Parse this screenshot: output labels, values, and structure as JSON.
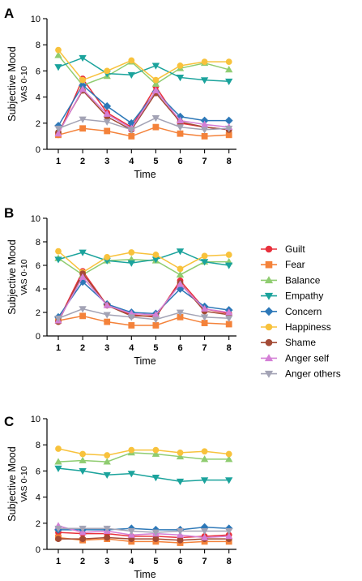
{
  "chart_data": [
    {
      "panel": "A",
      "type": "line",
      "ylabel": "Subjective Mood",
      "ylabel2": "VAS 0-10",
      "xlabel": "Time",
      "ylim": [
        0,
        10
      ],
      "yticks": [
        0,
        2,
        4,
        6,
        8,
        10
      ],
      "x": [
        1,
        2,
        3,
        4,
        5,
        6,
        7,
        8
      ],
      "series": [
        {
          "name": "Guilt",
          "values": [
            1.1,
            5.4,
            2.8,
            1.7,
            4.8,
            2.0,
            1.7,
            1.5
          ]
        },
        {
          "name": "Fear",
          "values": [
            1.1,
            1.6,
            1.4,
            1.0,
            1.7,
            1.2,
            1.0,
            1.1
          ]
        },
        {
          "name": "Balance",
          "values": [
            7.2,
            4.9,
            5.6,
            6.7,
            5.0,
            6.2,
            6.6,
            6.1
          ]
        },
        {
          "name": "Empathy",
          "values": [
            6.3,
            7.0,
            5.8,
            5.7,
            6.4,
            5.5,
            5.3,
            5.2
          ]
        },
        {
          "name": "Concern",
          "values": [
            1.8,
            4.9,
            3.3,
            2.0,
            4.4,
            2.5,
            2.2,
            2.2
          ]
        },
        {
          "name": "Happiness",
          "values": [
            7.6,
            5.3,
            6.0,
            6.8,
            5.3,
            6.4,
            6.7,
            6.7
          ]
        },
        {
          "name": "Shame",
          "values": [
            1.3,
            4.5,
            2.5,
            1.5,
            4.3,
            2.1,
            1.7,
            1.5
          ]
        },
        {
          "name": "Anger self",
          "values": [
            1.2,
            4.6,
            2.7,
            1.6,
            4.5,
            2.2,
            1.9,
            1.7
          ]
        },
        {
          "name": "Anger others",
          "values": [
            1.6,
            2.3,
            2.1,
            1.5,
            2.4,
            1.7,
            1.5,
            1.6
          ]
        }
      ]
    },
    {
      "panel": "B",
      "type": "line",
      "ylabel": "Subjective Mood",
      "ylabel2": "VAS 0-10",
      "xlabel": "Time",
      "ylim": [
        0,
        10
      ],
      "yticks": [
        0,
        2,
        4,
        6,
        8,
        10
      ],
      "x": [
        1,
        2,
        3,
        4,
        5,
        6,
        7,
        8
      ],
      "series": [
        {
          "name": "Guilt",
          "values": [
            1.3,
            5.5,
            2.6,
            1.8,
            1.6,
            4.7,
            2.3,
            1.9
          ]
        },
        {
          "name": "Fear",
          "values": [
            1.3,
            1.7,
            1.2,
            0.9,
            0.9,
            1.6,
            1.1,
            1.0
          ]
        },
        {
          "name": "Balance",
          "values": [
            6.6,
            5.2,
            6.4,
            6.5,
            6.4,
            5.2,
            6.3,
            6.3
          ]
        },
        {
          "name": "Empathy",
          "values": [
            6.5,
            7.1,
            6.4,
            6.2,
            6.5,
            7.2,
            6.3,
            6.0
          ]
        },
        {
          "name": "Concern",
          "values": [
            1.6,
            4.6,
            2.7,
            2.0,
            1.9,
            4.0,
            2.5,
            2.2
          ]
        },
        {
          "name": "Happiness",
          "values": [
            7.2,
            5.4,
            6.7,
            7.1,
            6.9,
            5.7,
            6.8,
            6.9
          ]
        },
        {
          "name": "Shame",
          "values": [
            1.2,
            5.3,
            2.6,
            1.7,
            1.7,
            4.5,
            2.1,
            1.8
          ]
        },
        {
          "name": "Anger self",
          "values": [
            1.3,
            5.0,
            2.6,
            1.9,
            1.8,
            4.4,
            2.3,
            2.0
          ]
        },
        {
          "name": "Anger others",
          "values": [
            1.5,
            2.3,
            1.8,
            1.6,
            1.4,
            2.0,
            1.6,
            1.5
          ]
        }
      ]
    },
    {
      "panel": "C",
      "type": "line",
      "ylabel": "Subjective Mood",
      "ylabel2": "VAS 0-10",
      "xlabel": "Time",
      "ylim": [
        0,
        10
      ],
      "yticks": [
        0,
        2,
        4,
        6,
        8,
        10
      ],
      "x": [
        1,
        2,
        3,
        4,
        5,
        6,
        7,
        8
      ],
      "series": [
        {
          "name": "Guilt",
          "values": [
            1.3,
            1.2,
            1.2,
            1.0,
            1.0,
            0.9,
            1.0,
            1.1
          ]
        },
        {
          "name": "Fear",
          "values": [
            0.9,
            0.7,
            0.8,
            0.6,
            0.6,
            0.5,
            0.6,
            0.6
          ]
        },
        {
          "name": "Balance",
          "values": [
            6.7,
            6.8,
            6.7,
            7.4,
            7.3,
            7.1,
            6.9,
            6.9
          ]
        },
        {
          "name": "Empathy",
          "values": [
            6.2,
            6.0,
            5.7,
            5.8,
            5.5,
            5.2,
            5.3,
            5.3
          ]
        },
        {
          "name": "Concern",
          "values": [
            1.5,
            1.5,
            1.5,
            1.6,
            1.5,
            1.5,
            1.7,
            1.6
          ]
        },
        {
          "name": "Happiness",
          "values": [
            7.7,
            7.3,
            7.2,
            7.6,
            7.6,
            7.4,
            7.5,
            7.3
          ]
        },
        {
          "name": "Shame",
          "values": [
            0.8,
            0.8,
            0.9,
            0.8,
            0.8,
            0.7,
            0.8,
            0.8
          ]
        },
        {
          "name": "Anger self",
          "values": [
            1.8,
            1.3,
            1.4,
            1.1,
            1.2,
            1.1,
            0.9,
            1.0
          ]
        },
        {
          "name": "Anger others",
          "values": [
            1.6,
            1.6,
            1.6,
            1.4,
            1.3,
            1.4,
            1.4,
            1.4
          ]
        }
      ]
    }
  ],
  "series_styles": [
    {
      "name": "Guilt",
      "color": "#e8303c",
      "marker": "circle"
    },
    {
      "name": "Fear",
      "color": "#f4823a",
      "marker": "square"
    },
    {
      "name": "Balance",
      "color": "#8fcc70",
      "marker": "triangle-up"
    },
    {
      "name": "Empathy",
      "color": "#1ba39c",
      "marker": "triangle-down"
    },
    {
      "name": "Concern",
      "color": "#2d78b8",
      "marker": "diamond"
    },
    {
      "name": "Happiness",
      "color": "#f8c23c",
      "marker": "circle"
    },
    {
      "name": "Shame",
      "color": "#a34a35",
      "marker": "circle"
    },
    {
      "name": "Anger self",
      "color": "#d47fd6",
      "marker": "triangle-up"
    },
    {
      "name": "Anger others",
      "color": "#a3a3b5",
      "marker": "triangle-down"
    }
  ],
  "legend_placement": "right"
}
